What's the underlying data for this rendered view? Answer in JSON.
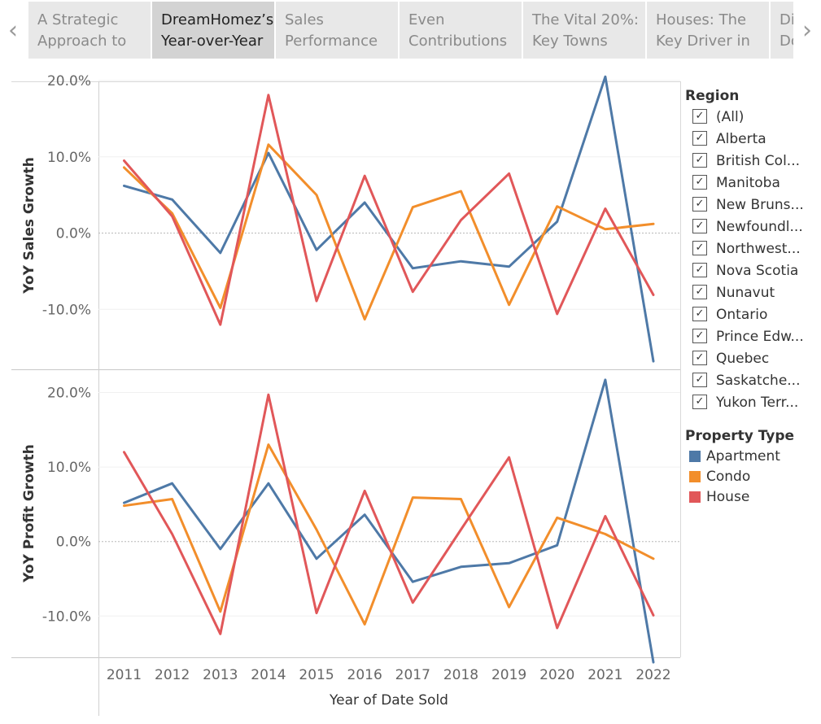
{
  "story": {
    "tabs": [
      {
        "line1": "A Strategic",
        "line2": "Approach to"
      },
      {
        "line1": "DreamHomez’s",
        "line2": "Year-over-Year"
      },
      {
        "line1": "Sales",
        "line2": "Performance"
      },
      {
        "line1": "Even",
        "line2": "Contributions"
      },
      {
        "line1": "The Vital 20%:",
        "line2": "Key Towns"
      },
      {
        "line1": "Houses: The",
        "line2": "Key Driver in"
      },
      {
        "line1": "Di",
        "line2": "Do"
      }
    ],
    "active_tab": 1,
    "prev_icon": "chevron-left-icon",
    "next_icon": "chevron-right-icon"
  },
  "legend": {
    "region_title": "Region",
    "regions": [
      "(All)",
      "Alberta",
      "British Col...",
      "Manitoba",
      "New Bruns...",
      "Newfoundl...",
      "Northwest...",
      "Nova Scotia",
      "Nunavut",
      "Ontario",
      "Prince Edw...",
      "Quebec",
      "Saskatche...",
      "Yukon Terr..."
    ],
    "checked_icon": "checkmark-icon",
    "property_title": "Property Type",
    "property_types": [
      {
        "label": "Apartment",
        "color": "#4e79a7"
      },
      {
        "label": "Condo",
        "color": "#f28e2b"
      },
      {
        "label": "House",
        "color": "#e15759"
      }
    ]
  },
  "chart_data": {
    "type": "line",
    "xlabel": "Year of Date Sold",
    "categories": [
      "2011",
      "2012",
      "2013",
      "2014",
      "2015",
      "2016",
      "2017",
      "2018",
      "2019",
      "2020",
      "2021",
      "2022"
    ],
    "panels": [
      {
        "ylabel": "YoY Sales Growth",
        "ylim": [
          -0.185,
          0.2
        ],
        "yticks": [
          0.2,
          0.1,
          0.0,
          -0.1
        ],
        "yticklabels": [
          "20.0%",
          "10.0%",
          "0.0%",
          "-10.0%"
        ],
        "series": [
          {
            "name": "Apartment",
            "color": "#4e79a7",
            "values": [
              0.062,
              0.044,
              -0.026,
              0.105,
              -0.022,
              0.04,
              -0.046,
              -0.037,
              -0.044,
              0.015,
              0.205,
              -0.168
            ]
          },
          {
            "name": "Condo",
            "color": "#f28e2b",
            "values": [
              0.086,
              0.026,
              -0.098,
              0.116,
              0.05,
              -0.113,
              0.034,
              0.055,
              -0.094,
              0.035,
              0.005,
              0.012
            ]
          },
          {
            "name": "House",
            "color": "#e15759",
            "values": [
              0.095,
              0.022,
              -0.12,
              0.181,
              -0.089,
              0.075,
              -0.077,
              0.017,
              0.078,
              -0.106,
              0.032,
              -0.081
            ]
          }
        ]
      },
      {
        "ylabel": "YoY Profit Growth",
        "ylim": [
          -0.175,
          0.23
        ],
        "yticks": [
          0.2,
          0.1,
          0.0,
          -0.1
        ],
        "yticklabels": [
          "20.0%",
          "10.0%",
          "0.0%",
          "-10.0%"
        ],
        "series": [
          {
            "name": "Apartment",
            "color": "#4e79a7",
            "values": [
              0.052,
              0.078,
              -0.01,
              0.078,
              -0.023,
              0.036,
              -0.054,
              -0.034,
              -0.029,
              -0.005,
              0.217,
              -0.162
            ]
          },
          {
            "name": "Condo",
            "color": "#f28e2b",
            "values": [
              0.048,
              0.057,
              -0.094,
              0.13,
              0.016,
              -0.111,
              0.059,
              0.057,
              -0.088,
              0.032,
              0.01,
              -0.023
            ]
          },
          {
            "name": "House",
            "color": "#e15759",
            "values": [
              0.12,
              0.01,
              -0.124,
              0.197,
              -0.096,
              0.068,
              -0.082,
              0.016,
              0.113,
              -0.116,
              0.034,
              -0.099
            ]
          }
        ]
      }
    ],
    "grid": true,
    "zero_line": "dotted",
    "legend": "right"
  }
}
